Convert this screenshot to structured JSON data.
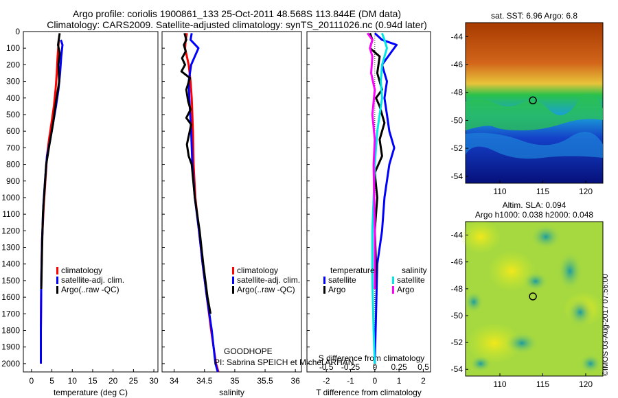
{
  "title": {
    "line1": "Argo profile: coriolis 1900861_133 25-Oct-2011 48.568S 113.844E (DM data)",
    "line2": "Climatology: CARS2009. Satellite-adjusted climatology: synTS_20111026.nc (0.94d later)"
  },
  "colors": {
    "climatology": "#ff0000",
    "satellite": "#0000ff",
    "argo": "#000000",
    "sal_satellite": "#00e6e6",
    "sal_argo": "#ff00ff"
  },
  "annotations": {
    "project": "GOODHOPE",
    "pi": "PI: Sabrina SPEICH et Michel ARHAN"
  },
  "maps": {
    "sst": {
      "title": "sat. SST: 6.96 Argo: 6.8",
      "yticks": [
        "-44",
        "-46",
        "-48",
        "-50",
        "-52",
        "-54"
      ],
      "xticks": [
        "110",
        "115",
        "120"
      ],
      "marker": {
        "lon": 113.844,
        "lat": -48.568
      }
    },
    "sla": {
      "title1": "Altim. SLA: 0.094",
      "title2": "Argo h1000: 0.038 h2000: 0.048",
      "yticks": [
        "-44",
        "-46",
        "-48",
        "-50",
        "-52",
        "-54"
      ],
      "xticks": [
        "110",
        "115",
        "120"
      ],
      "marker": {
        "lon": 113.844,
        "lat": -48.568
      }
    }
  },
  "credit": "©IMOS 03-Aug-2017 07:56:00",
  "chart_data": [
    {
      "type": "line",
      "xlabel": "temperature (deg C)",
      "ylabel": "",
      "xlim": [
        -2,
        31
      ],
      "ylim": [
        2050,
        0
      ],
      "xticks": [
        "0",
        "5",
        "10",
        "15",
        "20",
        "25",
        "30"
      ],
      "yticks": [
        "0",
        "100",
        "200",
        "300",
        "400",
        "500",
        "600",
        "700",
        "800",
        "900",
        "1000",
        "1100",
        "1200",
        "1300",
        "1400",
        "1500",
        "1600",
        "1700",
        "1800",
        "1900",
        "2000"
      ],
      "legend": [
        "climatology",
        "satellite-adj. clim.",
        "Argo(..raw -QC)"
      ],
      "series": [
        {
          "name": "climatology",
          "color": "#ff0000",
          "x": [
            6.7,
            6.4,
            6.2,
            5.9,
            5.5,
            4.9,
            4.3,
            3.8,
            3.4,
            3.0,
            2.6,
            2.4,
            2.3,
            2.3
          ],
          "y": [
            50,
            150,
            250,
            350,
            450,
            550,
            650,
            750,
            900,
            1050,
            1250,
            1500,
            1800,
            2000
          ]
        },
        {
          "name": "satellite-adj. clim.",
          "color": "#0000ff",
          "x": [
            7.2,
            7.6,
            7.3,
            7.0,
            6.6,
            6.0,
            5.3,
            4.6,
            3.8,
            3.3,
            2.9,
            2.6,
            2.4,
            2.3,
            2.3
          ],
          "y": [
            50,
            80,
            150,
            250,
            350,
            450,
            550,
            650,
            750,
            900,
            1050,
            1250,
            1500,
            1800,
            2000
          ]
        },
        {
          "name": "Argo(..raw -QC)",
          "color": "#000000",
          "x": [
            6.9,
            6.5,
            6.9,
            6.6,
            6.8,
            6.0,
            5.3,
            4.4,
            3.6,
            3.2,
            2.8,
            2.6,
            2.4
          ],
          "y": [
            10,
            80,
            130,
            200,
            300,
            420,
            550,
            680,
            800,
            950,
            1100,
            1300,
            1550
          ]
        }
      ]
    },
    {
      "type": "line",
      "xlabel": "salinity",
      "ylabel": "",
      "xlim": [
        33.8,
        36.1
      ],
      "ylim": [
        2050,
        0
      ],
      "xticks": [
        "34",
        "34.5",
        "35",
        "35.5",
        "36"
      ],
      "legend": [
        "climatology",
        "satellite-adj. clim.",
        "Argo(..raw -QC)"
      ],
      "series": [
        {
          "name": "climatology",
          "color": "#ff0000",
          "x": [
            34.21,
            34.19,
            34.18,
            34.24,
            34.27,
            34.29,
            34.31,
            34.32,
            34.35,
            34.41,
            34.47,
            34.54,
            34.61,
            34.65,
            34.69,
            34.73
          ],
          "y": [
            10,
            50,
            100,
            200,
            300,
            400,
            600,
            800,
            1000,
            1200,
            1400,
            1600,
            1800,
            1900,
            2000,
            2050
          ]
        },
        {
          "name": "satellite-adj. clim.",
          "color": "#0000ff",
          "x": [
            34.29,
            34.27,
            34.35,
            34.4,
            34.28,
            34.24,
            34.25,
            34.28,
            34.3,
            34.34,
            34.41,
            34.47,
            34.54,
            34.62,
            34.68,
            34.72
          ],
          "y": [
            10,
            50,
            80,
            100,
            200,
            300,
            400,
            600,
            800,
            1000,
            1200,
            1400,
            1600,
            1800,
            2000,
            2050
          ]
        },
        {
          "name": "Argo(..raw -QC)",
          "color": "#000000",
          "x": [
            34.17,
            34.2,
            34.16,
            34.19,
            34.13,
            34.18,
            34.12,
            34.26,
            34.2,
            34.23,
            34.27,
            34.2,
            34.28,
            34.21,
            34.24,
            34.29,
            34.34,
            34.42,
            34.48,
            34.55,
            34.6
          ],
          "y": [
            10,
            50,
            80,
            120,
            160,
            200,
            240,
            280,
            350,
            420,
            470,
            520,
            560,
            680,
            750,
            800,
            1000,
            1200,
            1400,
            1600,
            1700
          ]
        }
      ]
    },
    {
      "type": "line",
      "xlabel": "T difference from climatology",
      "ylabel": "",
      "xlim": [
        -2.8,
        2.3
      ],
      "ylim": [
        2050,
        0
      ],
      "xticks": [
        "-2",
        "-1",
        "0",
        "1",
        "2"
      ],
      "secondary_xlabel": "S difference from climatology",
      "secondary_xticks": [
        "-0.5",
        "-0.25",
        "0",
        "0.25",
        "0.5"
      ],
      "legend_groups": {
        "temperature": "temperature",
        "salinity": "salinity"
      },
      "legend": [
        "satellite",
        "Argo",
        "satellite",
        "Argo"
      ],
      "series": [
        {
          "name": "satellite",
          "group": "temperature",
          "color": "#0000ff",
          "x": [
            0.0,
            0.3,
            0.9,
            0.7,
            0.3,
            0.5,
            0.4,
            0.5,
            0.6,
            0.8,
            0.6,
            0.4,
            0.3,
            0.1,
            0.05,
            0.0
          ],
          "y": [
            10,
            50,
            80,
            120,
            200,
            300,
            400,
            500,
            600,
            700,
            800,
            1000,
            1200,
            1400,
            1700,
            2000
          ]
        },
        {
          "name": "Argo",
          "group": "temperature",
          "color": "#000000",
          "x": [
            -0.2,
            -0.1,
            -0.2,
            0.2,
            0.1,
            0.3,
            0.05,
            0.2,
            0.4,
            0.2,
            0.3,
            0.0,
            0.1,
            0.0,
            0.05,
            0.02
          ],
          "y": [
            10,
            50,
            100,
            150,
            250,
            350,
            400,
            450,
            550,
            650,
            750,
            850,
            1000,
            1200,
            1400,
            1550
          ]
        },
        {
          "name": "satellite",
          "group": "salinity",
          "color": "#00e6e6",
          "x": [
            0.3,
            0.4,
            0.5,
            0.3,
            0.25,
            0.3,
            0.1,
            0.0,
            -0.05,
            -0.1,
            -0.1,
            -0.05,
            0.0
          ],
          "y": [
            10,
            50,
            100,
            200,
            300,
            400,
            600,
            800,
            1000,
            1200,
            1500,
            1800,
            2000
          ]
        },
        {
          "name": "Argo",
          "group": "salinity",
          "color": "#ff00ff",
          "x": [
            -0.3,
            -0.1,
            -0.2,
            -0.1,
            -0.15,
            0.0,
            -0.1,
            0.0,
            -0.05,
            0.0,
            0.0
          ],
          "y": [
            10,
            50,
            100,
            150,
            250,
            350,
            500,
            650,
            800,
            1200,
            1550
          ]
        }
      ]
    }
  ]
}
